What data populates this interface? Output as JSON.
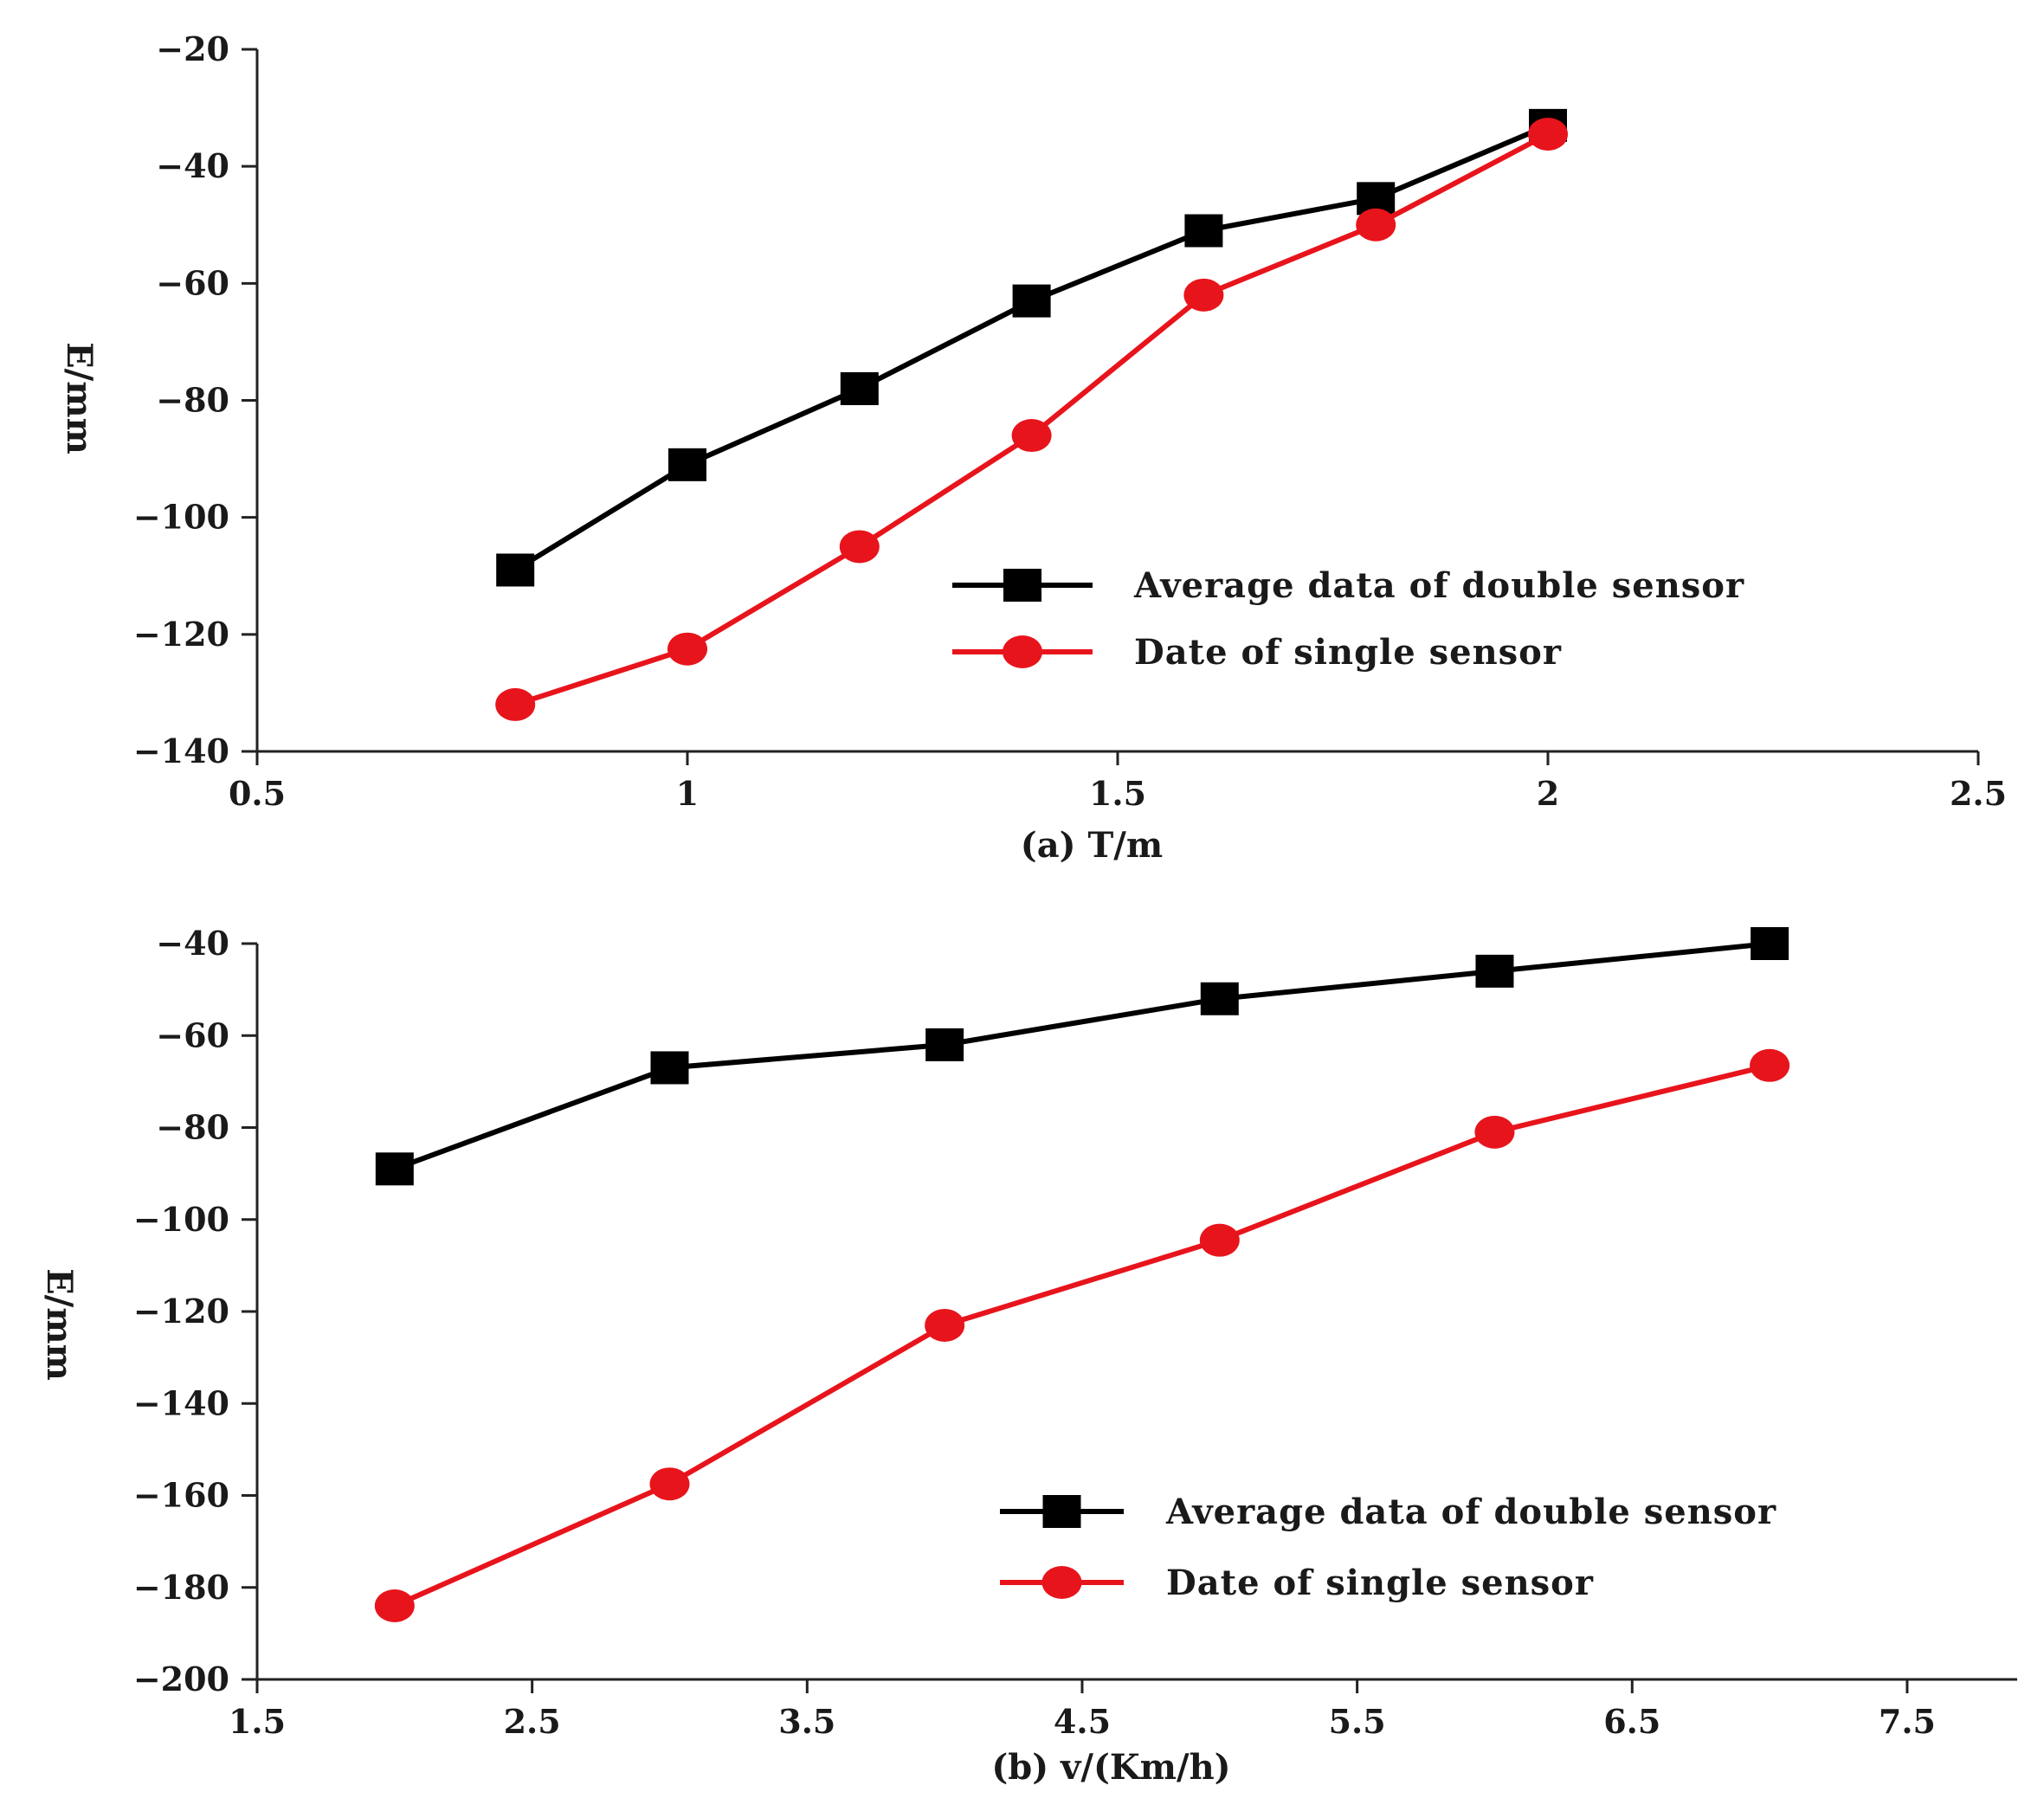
{
  "chart_data": [
    {
      "type": "line",
      "panel": "a",
      "title": "",
      "xlabel": "(a) T/m",
      "ylabel": "E/mm",
      "xlim": [
        0.5,
        2.5
      ],
      "ylim": [
        -140,
        -20
      ],
      "xticks": [
        0.5,
        1,
        1.5,
        2,
        2.5
      ],
      "xtick_labels": [
        "0.5",
        "1",
        "1.5",
        "2",
        "2.5"
      ],
      "yticks": [
        -20,
        -40,
        -60,
        -80,
        -100,
        -120,
        -140
      ],
      "ytick_labels": [
        "−20",
        "−40",
        "−60",
        "−80",
        "−100",
        "−120",
        "−140"
      ],
      "grid": false,
      "legend_position": "lower-right",
      "series": [
        {
          "name": "Average data of double sensor",
          "color": "#000000",
          "marker": "square",
          "x": [
            0.8,
            1.0,
            1.2,
            1.4,
            1.6,
            1.8,
            2.0
          ],
          "y": [
            -109,
            -91,
            -78,
            -63,
            -51,
            -45.5,
            -33
          ]
        },
        {
          "name": "Date of single sensor",
          "color": "#e8141c",
          "marker": "circle",
          "x": [
            0.8,
            1.0,
            1.2,
            1.4,
            1.6,
            1.8,
            2.0
          ],
          "y": [
            -132,
            -122.5,
            -105,
            -86,
            -62,
            -50,
            -34.5
          ]
        }
      ]
    },
    {
      "type": "line",
      "panel": "b",
      "title": "",
      "xlabel": "(b) v/(Km/h)",
      "ylabel": "E/mm",
      "xlim": [
        1.5,
        7.9
      ],
      "ylim": [
        -200,
        -40
      ],
      "xticks": [
        1.5,
        2.5,
        3.5,
        4.5,
        5.5,
        6.5,
        7.5
      ],
      "xtick_labels": [
        "1.5",
        "2.5",
        "3.5",
        "4.5",
        "5.5",
        "6.5",
        "7.5"
      ],
      "yticks": [
        -40,
        -60,
        -80,
        -100,
        -120,
        -140,
        -160,
        -180,
        -200
      ],
      "ytick_labels": [
        "−40",
        "−60",
        "−80",
        "−100",
        "−120",
        "−140",
        "−160",
        "−180",
        "−200"
      ],
      "grid": false,
      "legend_position": "lower-right",
      "series": [
        {
          "name": "Average data of double sensor",
          "color": "#000000",
          "marker": "square",
          "x": [
            2,
            3,
            4,
            5,
            6,
            7
          ],
          "y": [
            -89,
            -67,
            -62,
            -52,
            -46,
            -40
          ]
        },
        {
          "name": "Date of single sensor",
          "color": "#e8141c",
          "marker": "circle",
          "x": [
            2,
            3,
            4,
            5,
            6,
            7
          ],
          "y": [
            -184,
            -157.5,
            -123,
            -104.5,
            -81,
            -66.5
          ]
        }
      ]
    }
  ]
}
